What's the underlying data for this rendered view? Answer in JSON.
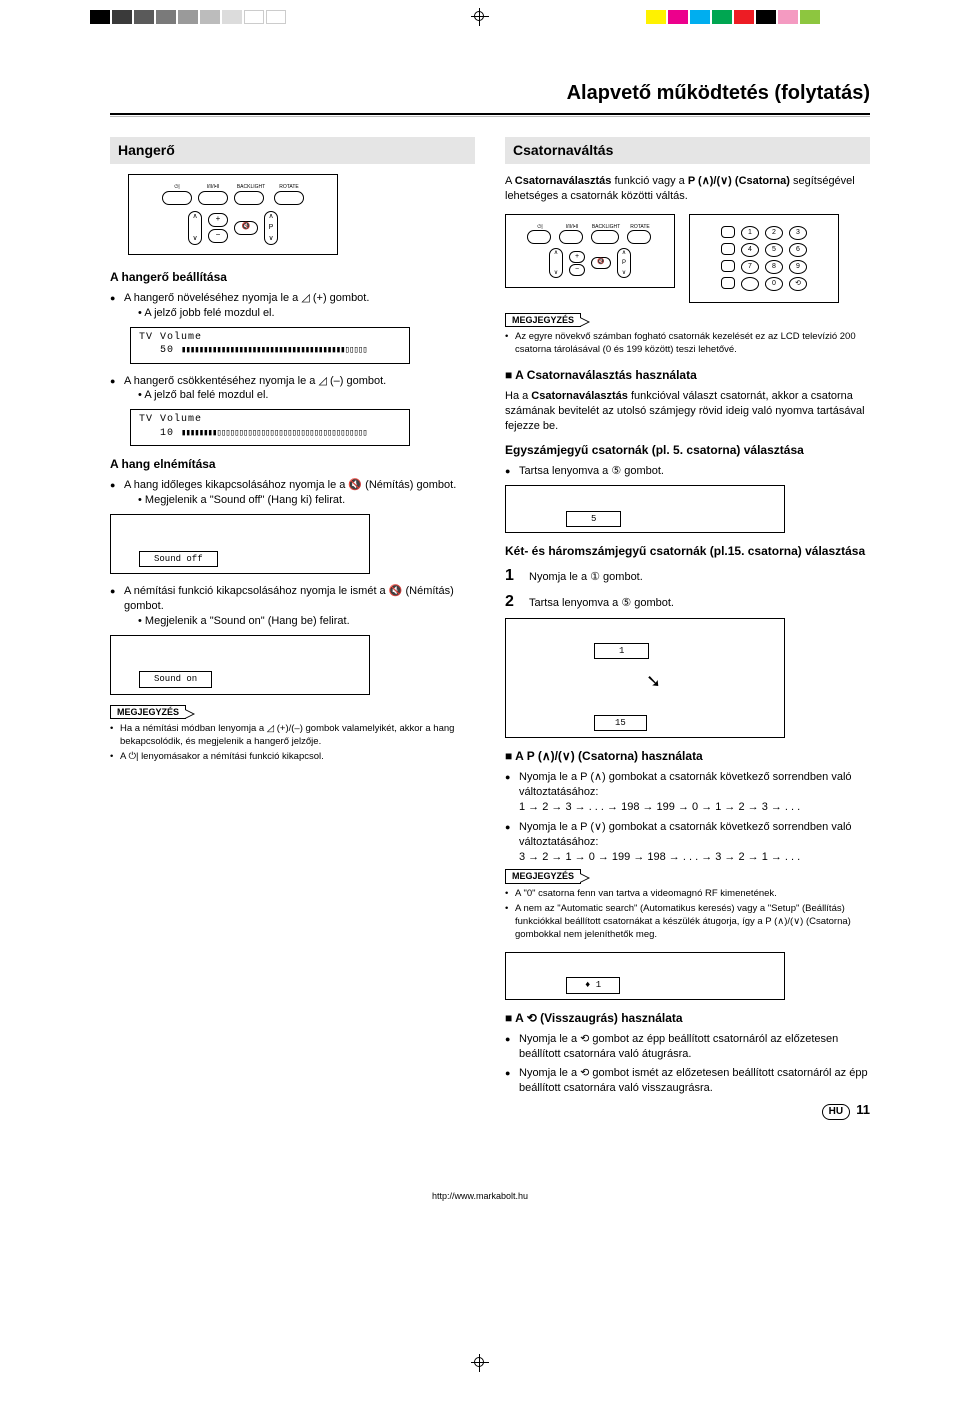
{
  "page": {
    "title": "Alapvető működtetés (folytatás)",
    "footer_url": "http://www.markabolt.hu",
    "lang_badge": "HU",
    "page_number": "11"
  },
  "colorbar": {
    "left": [
      "#000000",
      "#3a3a3a",
      "#5a5a5a",
      "#7a7a7a",
      "#9a9a9a",
      "#bcbcbc",
      "#dcdcdc",
      "#ffffff",
      "#ffffff"
    ],
    "right": [
      "#fff200",
      "#ec008c",
      "#00aeef",
      "#00a651",
      "#ed1c24",
      "#000000",
      "#f49ac1",
      "#8dc63f"
    ]
  },
  "remote": {
    "top_labels": [
      "⏻|",
      "I/II/I•II",
      "BACKLIGHT",
      "ROTATE"
    ]
  },
  "left": {
    "section_title": "Hangerő",
    "set_title": "A hangerő beállítása",
    "b1": "A hangerő növeléséhez nyomja le a ◿ (+) gombot.",
    "b1_sub": "A jelző jobb felé mozdul el.",
    "osd1_label": "TV Volume",
    "osd1_value": "50",
    "osd1_bar": "▮▮▮▮▮▮▮▮▮▮▮▮▮▮▮▮▮▮▮▮▮▮▮▮▮▮▮▮▮▮▮▮▮▮▮▮▮▯▯▯▯▯",
    "b2": "A hangerő csökkentéséhez nyomja le a ◿ (–) gombot.",
    "b2_sub": "A jelző bal felé mozdul el.",
    "osd2_label": "TV Volume",
    "osd2_value": "10",
    "osd2_bar": "▮▮▮▮▮▮▮▮▯▯▯▯▯▯▯▯▯▯▯▯▯▯▯▯▯▯▯▯▯▯▯▯▯▯▯▯▯▯▯▯▯▯",
    "mute_title": "A hang elnémítása",
    "m1": "A hang időleges kikapcsolásához nyomja le a 🔇 (Némítás) gombot.",
    "m1_sub": "Megjelenik a \"Sound off\" (Hang ki) felirat.",
    "osd_soff": "Sound off",
    "m2": "A némítási funkció kikapcsolásához nyomja le ismét a 🔇 (Némítás) gombot.",
    "m2_sub": "Megjelenik a \"Sound on\" (Hang be) felirat.",
    "osd_son": "Sound on",
    "note_label": "MEGJEGYZÉS",
    "n1": "Ha a némítási módban lenyomja a ◿ (+)/(–) gombok valamelyikét, akkor a hang bekapcsolódik, és megjelenik a hangerő jelzője.",
    "n2": "A ⏻| lenyomásakor a némítási funkció kikapcsol."
  },
  "right": {
    "section_title": "Csatornaváltás",
    "intro": "A Csatornaválasztás funkció vagy a P (∧)/(∨) (Csatorna) segítségével lehetséges a csatornák közötti váltás.",
    "note_label": "MEGJEGYZÉS",
    "note1": "Az egyre növekvő számban fogható csatornák kezelését ez az LCD televízió 200 csatorna tárolásával (0 és 199 között) teszi lehetővé.",
    "use_title": "A Csatornaválasztás használata",
    "use_p": "Ha a Csatornaválasztás funkcióval választ csatornát, akkor a csatorna számának bevitelét az utolsó számjegy rövid ideig való nyomva tartásával fejezze be.",
    "single_title": "Egyszámjegyű csatornák (pl. 5. csatorna) választása",
    "single_b": "Tartsa lenyomva a ⑤ gombot.",
    "osd_ch5": "5",
    "multi_title": "Két- és háromszámjegyű csatornák (pl.15. csatorna) választása",
    "step1": "Nyomja le a ① gombot.",
    "step2": "Tartsa lenyomva a ⑤ gombot.",
    "osd_ch1": "1",
    "osd_ch15": "15",
    "p_title": "A P (∧)/(∨) (Csatorna) használata",
    "p_b1": "Nyomja le a P (∧) gombokat a csatornák következő sorrendben való változtatásához:",
    "p_seq1": "1 → 2 → 3 → . . . → 198 → 199 → 0 → 1 → 2 → 3 → . . .",
    "p_b2": "Nyomja le a P (∨) gombokat a csatornák következő sorrendben való változtatásához:",
    "p_seq2": "3 → 2 → 1 → 0 → 199 → 198 → . . . → 3 → 2 → 1 → . . .",
    "note2a": "A \"0\" csatorna fenn van tartva a videomagnó RF kimenetének.",
    "note2b": "A nem az \"Automatic search\" (Automatikus keresés) vagy a \"Setup\" (Beállítás) funkciókkal beállított csatornákat a készülék átugorja, így a P (∧)/(∨) (Csatorna) gombokkal nem jeleníthetők meg.",
    "osd_chbullet": "♦    1",
    "back_title": "A ⟲ (Visszaugrás) használata",
    "back_b1": "Nyomja le a ⟲ gombot az épp beállított csatornáról az előzetesen beállított csatornára való átugrásra.",
    "back_b2": "Nyomja le a ⟲ gombot ismét az előzetesen beállított csatornáról az épp beállított csatornára való visszaugrásra."
  },
  "keypad": {
    "rows": [
      [
        "1",
        "2",
        "3"
      ],
      [
        "4",
        "5",
        "6"
      ],
      [
        "7",
        "8",
        "9"
      ],
      [
        " ",
        "0",
        "⟲"
      ]
    ]
  }
}
